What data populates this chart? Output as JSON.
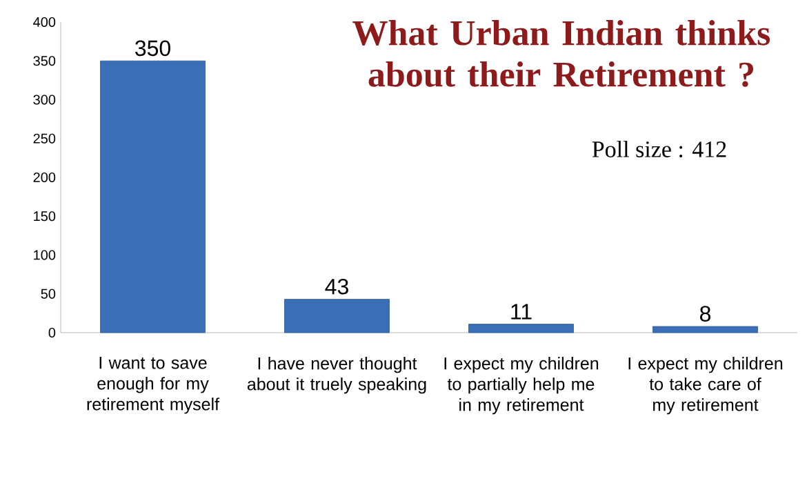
{
  "chart_data": {
    "type": "bar",
    "title": "What Urban Indian thinks about their Retirement ?",
    "subtitle": "Poll size : 412",
    "categories": [
      "I want to save enough for my retirement myself",
      "I have never thought about it truely speaking",
      "I expect my children to partially help me in my retirement",
      "I expect my children to take care of my retirement"
    ],
    "values": [
      350,
      43,
      11,
      8
    ],
    "color": "#3a6fb8",
    "ylim": [
      0,
      400
    ],
    "yticks": [
      0,
      50,
      100,
      150,
      200,
      250,
      300,
      350,
      400
    ],
    "grid": false,
    "data_labels": true
  }
}
